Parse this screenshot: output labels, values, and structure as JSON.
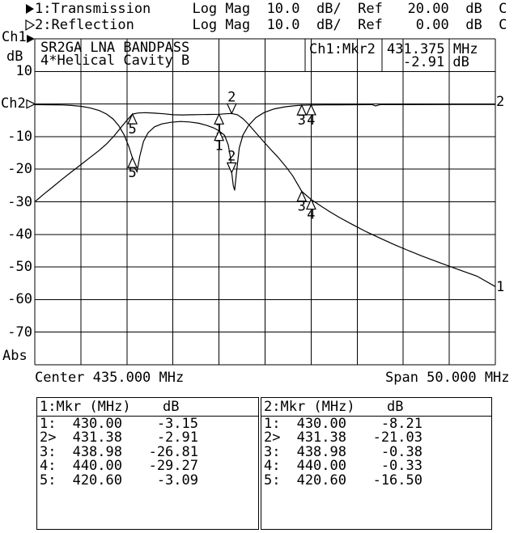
{
  "header": {
    "line1": "1:Transmission     Log Mag  10.0  dB/  Ref   20.00  dB  C",
    "line2": "2:Reflection       Log Mag  10.0  dB/  Ref    0.00  dB  C"
  },
  "left_axis": {
    "ch1": "Ch1",
    "unit": "dB",
    "ch2": "Ch2",
    "abs": "Abs",
    "ticks": [
      {
        "label": "10"
      },
      {
        "label": "-10"
      },
      {
        "label": "-20"
      },
      {
        "label": "-30"
      },
      {
        "label": "-40"
      },
      {
        "label": "-50"
      },
      {
        "label": "-60"
      },
      {
        "label": "-70"
      }
    ]
  },
  "plot": {
    "title_line1": "SR2GA LNA BANDPASS",
    "title_line2": "4*Helical Cavity B",
    "readout_label": "Ch1:Mkr2",
    "readout_value1": "431.375 MHz",
    "readout_value2": "-2.91 dB",
    "trace1_end_label": "1",
    "trace2_end_label": "2"
  },
  "x_axis": {
    "center": "Center 435.000 MHz",
    "span": "Span 50.000 MHz"
  },
  "chart_data": {
    "type": "line",
    "title": "SR2GA LNA BANDPASS 4*Helical Cavity B",
    "xlabel": "Frequency (MHz), Center 435.000 MHz, Span 50.000 MHz",
    "ylabel": "dB",
    "x_range_mhz": [
      410,
      460
    ],
    "y_range_db": [
      -80,
      20
    ],
    "y_step_db": 10,
    "grid": true,
    "series": [
      {
        "name": "Transmission",
        "scale_db_per_div": 10.0,
        "ref_db": 20.0,
        "points": [
          [
            410,
            -30
          ],
          [
            411,
            -27.6
          ],
          [
            412,
            -25.3
          ],
          [
            413,
            -23
          ],
          [
            414,
            -20.8
          ],
          [
            415,
            -18.6
          ],
          [
            416,
            -16.4
          ],
          [
            417,
            -14.2
          ],
          [
            417.8,
            -12.2
          ],
          [
            418.6,
            -9.8
          ],
          [
            419.3,
            -7.4
          ],
          [
            420,
            -5
          ],
          [
            420.6,
            -3.09
          ],
          [
            421.2,
            -2.75
          ],
          [
            422,
            -2.65
          ],
          [
            423,
            -2.8
          ],
          [
            424,
            -3
          ],
          [
            425,
            -3.3
          ],
          [
            426,
            -3.35
          ],
          [
            427,
            -3.3
          ],
          [
            428,
            -3.25
          ],
          [
            429,
            -3.2
          ],
          [
            430,
            -3.15
          ],
          [
            430.7,
            -3
          ],
          [
            431.38,
            -2.91
          ],
          [
            432,
            -3.3
          ],
          [
            432.6,
            -4.5
          ],
          [
            433.2,
            -6.2
          ],
          [
            434,
            -8.8
          ],
          [
            434.8,
            -11.4
          ],
          [
            435.6,
            -13.9
          ],
          [
            436.4,
            -16.3
          ],
          [
            437.2,
            -19
          ],
          [
            438,
            -22
          ],
          [
            438.98,
            -26.81
          ],
          [
            440,
            -29.27
          ],
          [
            441,
            -31.2
          ],
          [
            442,
            -33
          ],
          [
            443,
            -34.7
          ],
          [
            444.5,
            -37
          ],
          [
            446,
            -39.2
          ],
          [
            447.5,
            -41.2
          ],
          [
            449,
            -43.1
          ],
          [
            450.5,
            -44.9
          ],
          [
            452,
            -46.6
          ],
          [
            454,
            -48.7
          ],
          [
            456,
            -50.8
          ],
          [
            458,
            -52.8
          ],
          [
            460,
            -56
          ]
        ]
      },
      {
        "name": "Reflection",
        "scale_db_per_div": 10.0,
        "ref_db": 0.0,
        "points": [
          [
            410,
            -0.2
          ],
          [
            412,
            -0.25
          ],
          [
            413,
            -0.3
          ],
          [
            414,
            -0.45
          ],
          [
            415,
            -0.7
          ],
          [
            416,
            -1.2
          ],
          [
            417,
            -2
          ],
          [
            417.8,
            -3.1
          ],
          [
            418.5,
            -4.6
          ],
          [
            419.1,
            -6.6
          ],
          [
            419.7,
            -9.5
          ],
          [
            420.2,
            -13
          ],
          [
            420.6,
            -16.5
          ],
          [
            420.9,
            -19.8
          ],
          [
            421.1,
            -20.8
          ],
          [
            421.4,
            -16
          ],
          [
            421.8,
            -11.5
          ],
          [
            422.3,
            -8.8
          ],
          [
            423,
            -7
          ],
          [
            423.8,
            -6.1
          ],
          [
            424.8,
            -5.6
          ],
          [
            425.8,
            -5.35
          ],
          [
            426.8,
            -5.5
          ],
          [
            427.8,
            -5.9
          ],
          [
            428.6,
            -6.5
          ],
          [
            429.4,
            -7.3
          ],
          [
            430,
            -8.21
          ],
          [
            430.6,
            -9.6
          ],
          [
            431,
            -12.5
          ],
          [
            431.25,
            -16.5
          ],
          [
            431.38,
            -21.03
          ],
          [
            431.55,
            -25
          ],
          [
            431.7,
            -26.5
          ],
          [
            431.9,
            -21
          ],
          [
            432.2,
            -13.5
          ],
          [
            432.6,
            -9.5
          ],
          [
            433.2,
            -6.6
          ],
          [
            434,
            -4.2
          ],
          [
            434.9,
            -2.6
          ],
          [
            436,
            -1.5
          ],
          [
            437.2,
            -0.85
          ],
          [
            438.3,
            -0.5
          ],
          [
            438.98,
            -0.38
          ],
          [
            440,
            -0.33
          ],
          [
            441.5,
            -0.28
          ],
          [
            443,
            -0.25
          ],
          [
            446,
            -0.2
          ],
          [
            446.6,
            -0.18
          ],
          [
            447,
            -0.6
          ],
          [
            447.5,
            -0.18
          ],
          [
            450,
            -0.18
          ],
          [
            455,
            -0.15
          ],
          [
            460,
            -0.12
          ]
        ]
      }
    ],
    "markers": [
      {
        "trace": 1,
        "label": "1",
        "mhz": 430.0,
        "db": -3.15,
        "active": false
      },
      {
        "trace": 1,
        "label": "2",
        "mhz": 431.375,
        "db": -2.91,
        "active": true
      },
      {
        "trace": 1,
        "label": "3",
        "mhz": 438.98,
        "db": -26.81,
        "active": false
      },
      {
        "trace": 1,
        "label": "4",
        "mhz": 440.0,
        "db": -29.27,
        "active": false
      },
      {
        "trace": 1,
        "label": "5",
        "mhz": 420.6,
        "db": -3.09,
        "active": false
      },
      {
        "trace": 2,
        "label": "1",
        "mhz": 430.0,
        "db": -8.21,
        "active": false
      },
      {
        "trace": 2,
        "label": "2",
        "mhz": 431.375,
        "db": -21.03,
        "active": true
      },
      {
        "trace": 2,
        "label": "3",
        "mhz": 438.98,
        "db": -0.38,
        "active": false
      },
      {
        "trace": 2,
        "label": "4",
        "mhz": 440.0,
        "db": -0.33,
        "active": false
      },
      {
        "trace": 2,
        "label": "5",
        "mhz": 420.6,
        "db": -16.5,
        "active": false
      }
    ]
  },
  "tables": [
    {
      "header_left": "1:Mkr (MHz)",
      "header_right": "dB",
      "rows": [
        {
          "n": "1:",
          "f": "430.00",
          "db": "-3.15"
        },
        {
          "n": "2>",
          "f": "431.38",
          "db": "-2.91"
        },
        {
          "n": "3:",
          "f": "438.98",
          "db": "-26.81"
        },
        {
          "n": "4:",
          "f": "440.00",
          "db": "-29.27"
        },
        {
          "n": "5:",
          "f": "420.60",
          "db": "-3.09"
        }
      ]
    },
    {
      "header_left": "2:Mkr (MHz)",
      "header_right": "dB",
      "rows": [
        {
          "n": "1:",
          "f": "430.00",
          "db": "-8.21"
        },
        {
          "n": "2>",
          "f": "431.38",
          "db": "-21.03"
        },
        {
          "n": "3:",
          "f": "438.98",
          "db": "-0.38"
        },
        {
          "n": "4:",
          "f": "440.00",
          "db": "-0.33"
        },
        {
          "n": "5:",
          "f": "420.60",
          "db": "-16.50"
        }
      ]
    }
  ]
}
